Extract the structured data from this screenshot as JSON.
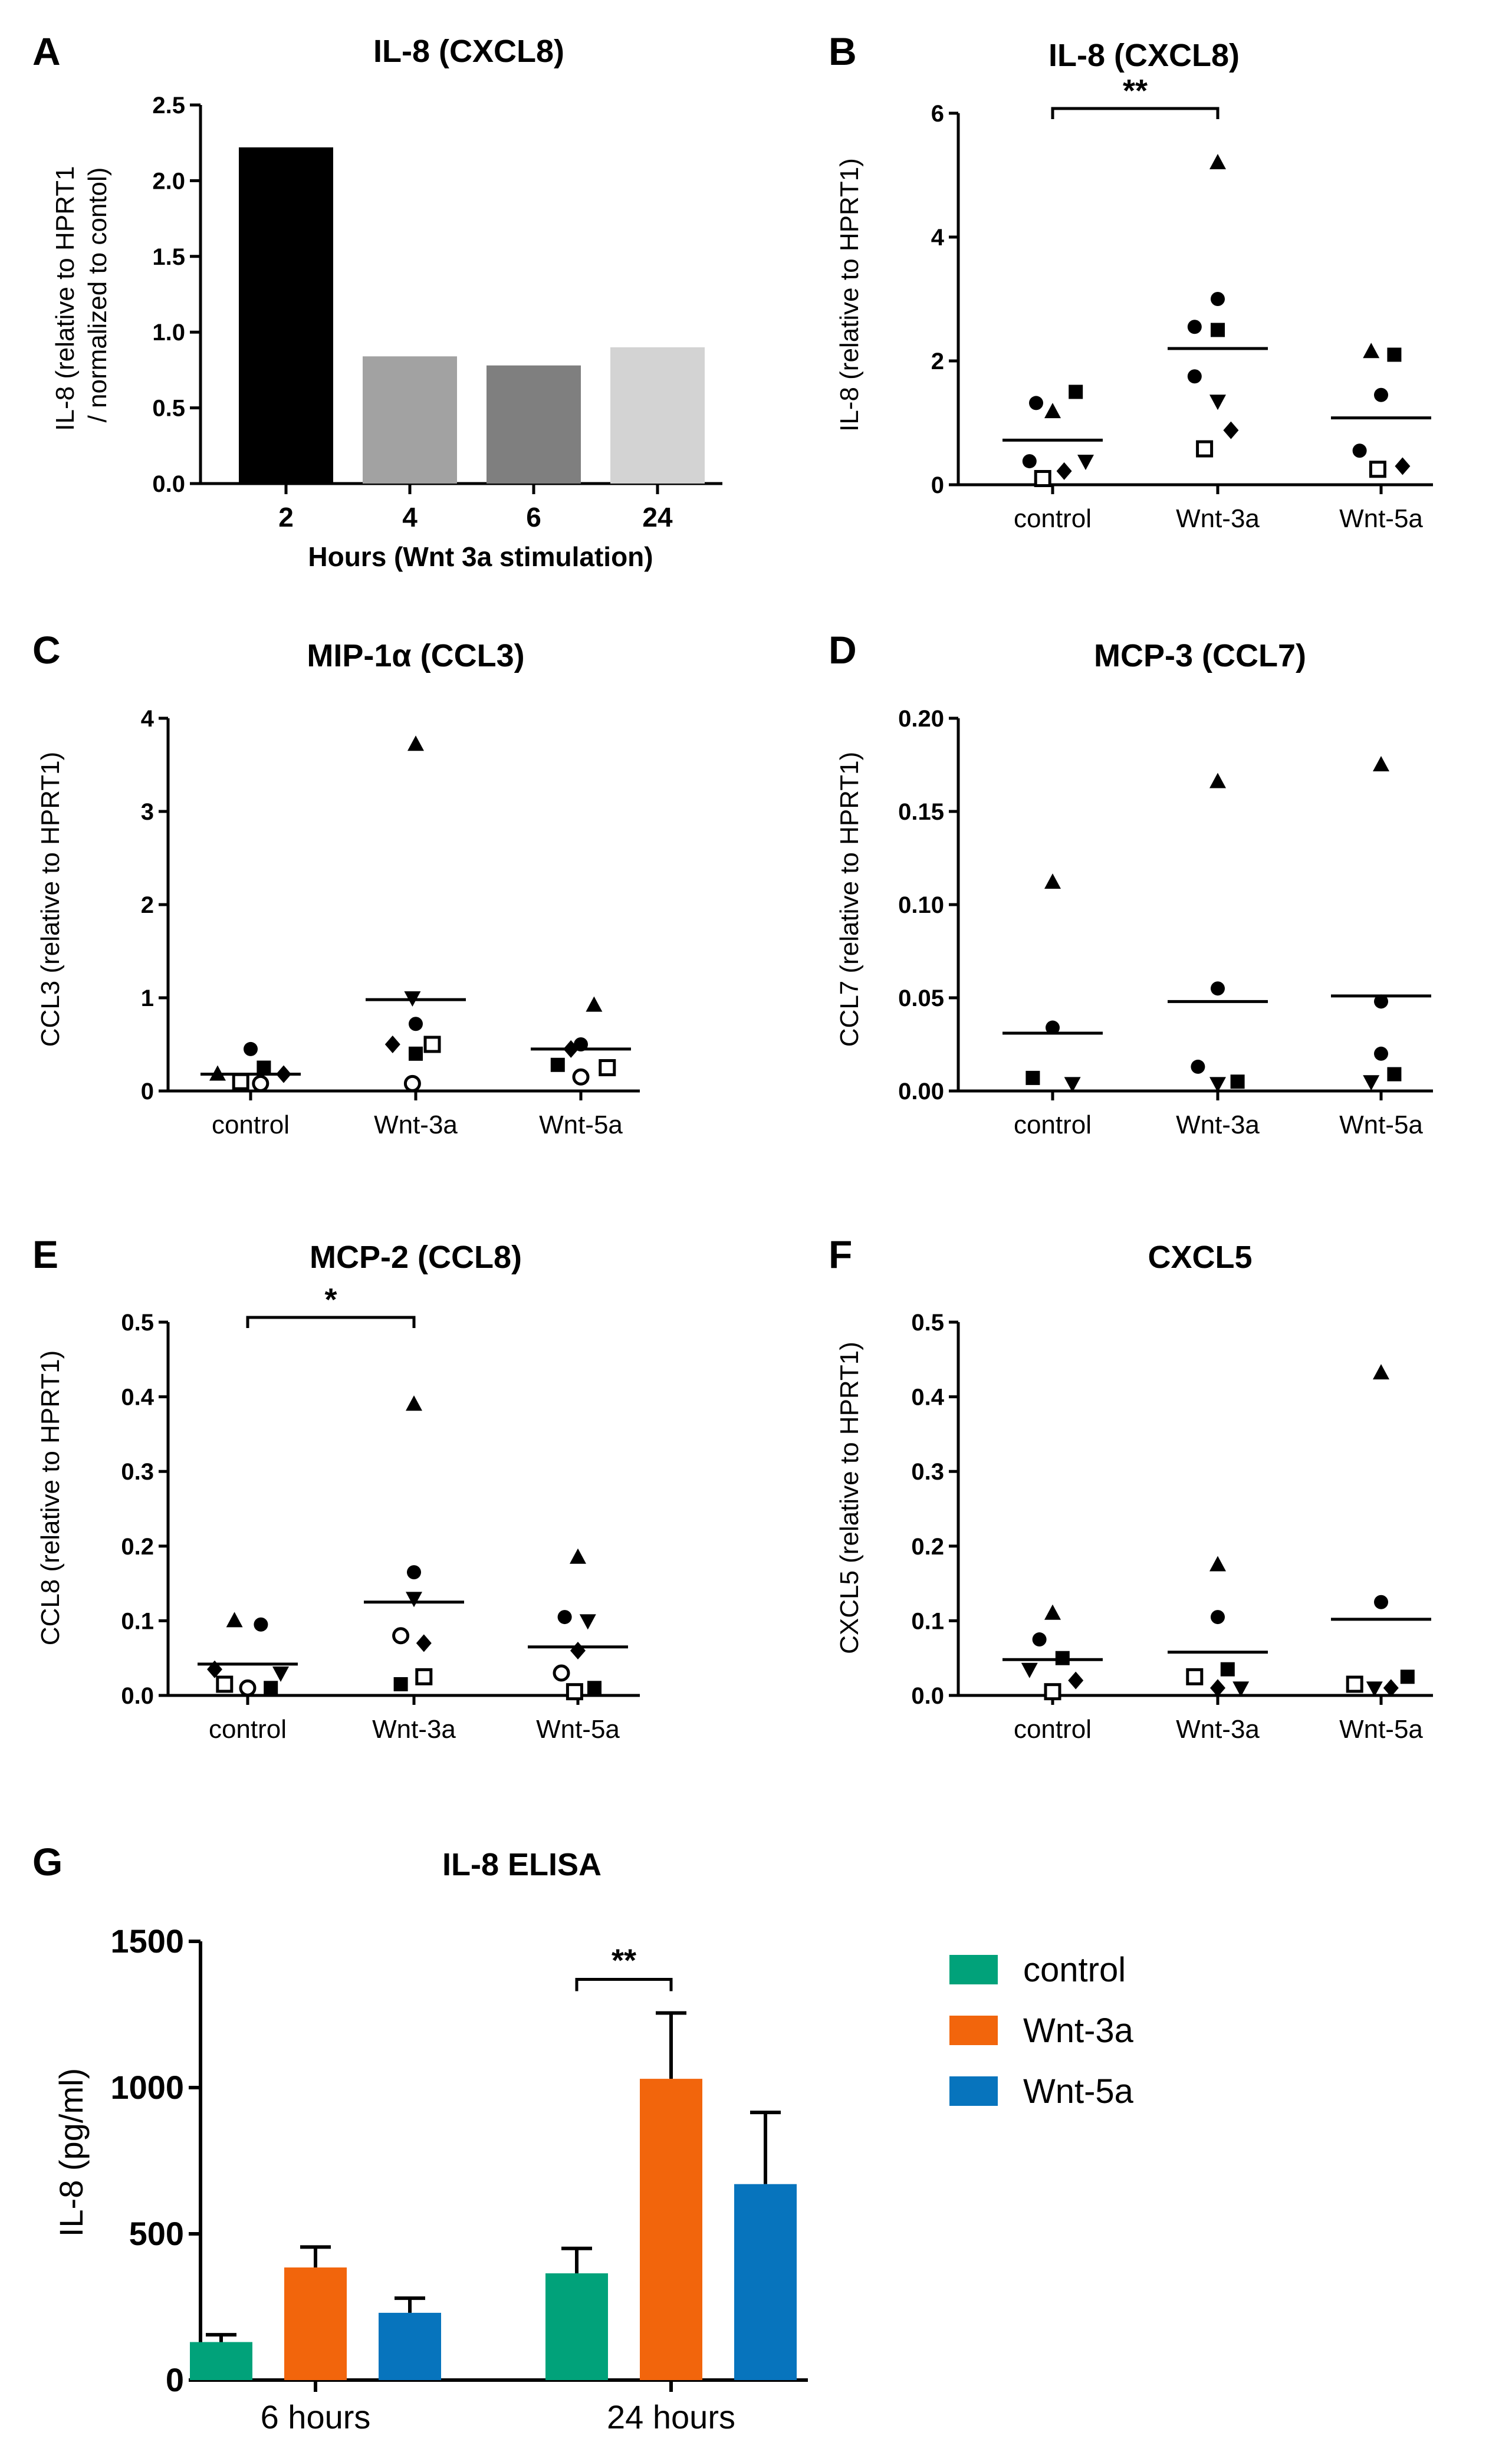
{
  "chart_data": [
    {
      "id": "A",
      "type": "bar",
      "panel_label": "A",
      "title": "IL-8 (CXCL8)",
      "ylabel": "IL-8 (relative to HPRT1\n/ normalized to contol)",
      "xlabel": "Hours (Wnt 3a stimulation)",
      "categories": [
        "2",
        "4",
        "6",
        "24"
      ],
      "values": [
        2.22,
        0.84,
        0.78,
        0.9
      ],
      "colors": [
        "#000000",
        "#a2a2a2",
        "#7f7f7f",
        "#d3d3d3"
      ],
      "ylim": [
        0,
        2.5
      ],
      "yticks": [
        "0.0",
        "0.5",
        "1.0",
        "1.5",
        "2.0",
        "2.5"
      ]
    },
    {
      "id": "B",
      "type": "scatter",
      "panel_label": "B",
      "title": "IL-8  (CXCL8)",
      "ylabel": "IL-8 (relative to HPRT1)",
      "categories": [
        "control",
        "Wnt-3a",
        "Wnt-5a"
      ],
      "ylim": [
        0,
        6
      ],
      "yticks": [
        "0",
        "2",
        "4",
        "6"
      ],
      "means": [
        0.72,
        2.2,
        1.08
      ],
      "significance": [
        {
          "from": 0,
          "to": 1,
          "label": "**",
          "y": 6.0
        }
      ],
      "points": [
        [
          {
            "s": "circle",
            "v": 1.32,
            "dx": -0.1
          },
          {
            "s": "triangle",
            "v": 1.18,
            "dx": 0.0
          },
          {
            "s": "square",
            "v": 1.5,
            "dx": 0.14
          },
          {
            "s": "circle",
            "v": 0.38,
            "dx": -0.14
          },
          {
            "s": "triangle-down",
            "v": 0.38,
            "dx": 0.2
          },
          {
            "s": "diamond",
            "v": 0.22,
            "dx": 0.07
          },
          {
            "s": "square-open",
            "v": 0.1,
            "dx": -0.06
          }
        ],
        [
          {
            "s": "triangle",
            "v": 5.2,
            "dx": 0.0
          },
          {
            "s": "circle",
            "v": 3.0,
            "dx": 0.0
          },
          {
            "s": "circle",
            "v": 2.55,
            "dx": -0.14
          },
          {
            "s": "square",
            "v": 2.5,
            "dx": 0.0
          },
          {
            "s": "circle",
            "v": 1.75,
            "dx": -0.14
          },
          {
            "s": "triangle-down",
            "v": 1.35,
            "dx": 0.0
          },
          {
            "s": "diamond",
            "v": 0.88,
            "dx": 0.08
          },
          {
            "s": "square-open",
            "v": 0.58,
            "dx": -0.08
          }
        ],
        [
          {
            "s": "triangle",
            "v": 2.15,
            "dx": -0.06
          },
          {
            "s": "square",
            "v": 2.1,
            "dx": 0.08
          },
          {
            "s": "circle",
            "v": 1.45,
            "dx": 0.0
          },
          {
            "s": "circle",
            "v": 0.55,
            "dx": -0.13
          },
          {
            "s": "diamond",
            "v": 0.3,
            "dx": 0.13
          },
          {
            "s": "square-open",
            "v": 0.25,
            "dx": -0.02
          }
        ]
      ]
    },
    {
      "id": "C",
      "type": "scatter",
      "panel_label": "C",
      "title": "MIP-1α (CCL3)",
      "ylabel": "CCL3 (relative to HPRT1)",
      "categories": [
        "control",
        "Wnt-3a",
        "Wnt-5a"
      ],
      "ylim": [
        0,
        4
      ],
      "yticks": [
        "0",
        "1",
        "2",
        "3",
        "4"
      ],
      "means": [
        0.18,
        0.98,
        0.45
      ],
      "significance": [],
      "points": [
        [
          {
            "s": "circle",
            "v": 0.45,
            "dx": 0.0
          },
          {
            "s": "triangle",
            "v": 0.18,
            "dx": -0.2
          },
          {
            "s": "square",
            "v": 0.25,
            "dx": 0.08
          },
          {
            "s": "diamond",
            "v": 0.18,
            "dx": 0.2
          },
          {
            "s": "square-open",
            "v": 0.1,
            "dx": -0.06
          },
          {
            "s": "circle-open",
            "v": 0.08,
            "dx": 0.06
          }
        ],
        [
          {
            "s": "triangle",
            "v": 3.72,
            "dx": 0.0
          },
          {
            "s": "triangle-down",
            "v": 1.0,
            "dx": -0.02
          },
          {
            "s": "circle",
            "v": 0.72,
            "dx": 0.0
          },
          {
            "s": "diamond",
            "v": 0.5,
            "dx": -0.14
          },
          {
            "s": "square",
            "v": 0.4,
            "dx": 0.0
          },
          {
            "s": "square-open",
            "v": 0.5,
            "dx": 0.1
          },
          {
            "s": "circle-open",
            "v": 0.08,
            "dx": -0.02
          }
        ],
        [
          {
            "s": "triangle",
            "v": 0.92,
            "dx": 0.08
          },
          {
            "s": "circle",
            "v": 0.5,
            "dx": 0.0
          },
          {
            "s": "square",
            "v": 0.28,
            "dx": -0.14
          },
          {
            "s": "diamond",
            "v": 0.45,
            "dx": -0.06
          },
          {
            "s": "square-open",
            "v": 0.25,
            "dx": 0.16
          },
          {
            "s": "circle-open",
            "v": 0.15,
            "dx": 0.0
          }
        ]
      ]
    },
    {
      "id": "D",
      "type": "scatter",
      "panel_label": "D",
      "title": "MCP-3 (CCL7)",
      "ylabel": "CCL7 (relative to HPRT1)",
      "categories": [
        "control",
        "Wnt-3a",
        "Wnt-5a"
      ],
      "ylim": [
        0,
        0.2
      ],
      "yticks": [
        "0.00",
        "0.05",
        "0.10",
        "0.15",
        "0.20"
      ],
      "means": [
        0.031,
        0.048,
        0.051
      ],
      "significance": [],
      "points": [
        [
          {
            "s": "triangle",
            "v": 0.112,
            "dx": 0.0
          },
          {
            "s": "circle",
            "v": 0.034,
            "dx": 0.0
          },
          {
            "s": "square",
            "v": 0.007,
            "dx": -0.12
          },
          {
            "s": "triangle-down",
            "v": 0.004,
            "dx": 0.12
          }
        ],
        [
          {
            "s": "triangle",
            "v": 0.166,
            "dx": 0.0
          },
          {
            "s": "circle",
            "v": 0.055,
            "dx": 0.0
          },
          {
            "s": "circle",
            "v": 0.013,
            "dx": -0.12
          },
          {
            "s": "triangle-down",
            "v": 0.004,
            "dx": 0.0
          },
          {
            "s": "square",
            "v": 0.005,
            "dx": 0.12
          }
        ],
        [
          {
            "s": "triangle",
            "v": 0.175,
            "dx": 0.0
          },
          {
            "s": "circle",
            "v": 0.048,
            "dx": 0.0
          },
          {
            "s": "circle",
            "v": 0.02,
            "dx": 0.0
          },
          {
            "s": "triangle-down",
            "v": 0.005,
            "dx": -0.06
          },
          {
            "s": "square",
            "v": 0.009,
            "dx": 0.08
          }
        ]
      ]
    },
    {
      "id": "E",
      "type": "scatter",
      "panel_label": "E",
      "title": "MCP-2 (CCL8)",
      "ylabel": "CCL8 (relative to HPRT1)",
      "categories": [
        "control",
        "Wnt-3a",
        "Wnt-5a"
      ],
      "ylim": [
        0,
        0.5
      ],
      "yticks": [
        "0.0",
        "0.1",
        "0.2",
        "0.3",
        "0.4",
        "0.5"
      ],
      "means": [
        0.042,
        0.125,
        0.065
      ],
      "significance": [
        {
          "from": 0,
          "to": 1,
          "label": "*",
          "y": 0.5
        }
      ],
      "points": [
        [
          {
            "s": "triangle",
            "v": 0.1,
            "dx": -0.08
          },
          {
            "s": "circle",
            "v": 0.095,
            "dx": 0.08
          },
          {
            "s": "diamond",
            "v": 0.035,
            "dx": -0.2
          },
          {
            "s": "triangle-down",
            "v": 0.03,
            "dx": 0.2
          },
          {
            "s": "square-open",
            "v": 0.015,
            "dx": -0.14
          },
          {
            "s": "circle-open",
            "v": 0.01,
            "dx": 0.0
          },
          {
            "s": "square",
            "v": 0.01,
            "dx": 0.14
          }
        ],
        [
          {
            "s": "triangle",
            "v": 0.39,
            "dx": 0.0
          },
          {
            "s": "circle",
            "v": 0.165,
            "dx": 0.0
          },
          {
            "s": "triangle-down",
            "v": 0.13,
            "dx": 0.0
          },
          {
            "s": "circle-open",
            "v": 0.08,
            "dx": -0.08
          },
          {
            "s": "diamond",
            "v": 0.07,
            "dx": 0.06
          },
          {
            "s": "square",
            "v": 0.015,
            "dx": -0.08
          },
          {
            "s": "square-open",
            "v": 0.025,
            "dx": 0.06
          }
        ],
        [
          {
            "s": "triangle",
            "v": 0.185,
            "dx": 0.0
          },
          {
            "s": "circle",
            "v": 0.105,
            "dx": -0.08
          },
          {
            "s": "triangle-down",
            "v": 0.1,
            "dx": 0.06
          },
          {
            "s": "diamond",
            "v": 0.06,
            "dx": 0.0
          },
          {
            "s": "circle-open",
            "v": 0.03,
            "dx": -0.1
          },
          {
            "s": "square",
            "v": 0.01,
            "dx": 0.1
          },
          {
            "s": "square-open",
            "v": 0.005,
            "dx": -0.02
          }
        ]
      ]
    },
    {
      "id": "F",
      "type": "scatter",
      "panel_label": "F",
      "title": "CXCL5",
      "ylabel": "CXCL5 (relative to HPRT1)",
      "categories": [
        "control",
        "Wnt-3a",
        "Wnt-5a"
      ],
      "ylim": [
        0,
        0.5
      ],
      "yticks": [
        "0.0",
        "0.1",
        "0.2",
        "0.3",
        "0.4",
        "0.5"
      ],
      "means": [
        0.048,
        0.058,
        0.102
      ],
      "significance": [],
      "points": [
        [
          {
            "s": "triangle",
            "v": 0.11,
            "dx": 0.0
          },
          {
            "s": "circle",
            "v": 0.075,
            "dx": -0.08
          },
          {
            "s": "square",
            "v": 0.05,
            "dx": 0.06
          },
          {
            "s": "triangle-down",
            "v": 0.035,
            "dx": -0.14
          },
          {
            "s": "diamond",
            "v": 0.02,
            "dx": 0.14
          },
          {
            "s": "square-open",
            "v": 0.005,
            "dx": 0.0
          }
        ],
        [
          {
            "s": "triangle",
            "v": 0.175,
            "dx": 0.0
          },
          {
            "s": "circle",
            "v": 0.105,
            "dx": 0.0
          },
          {
            "s": "square-open",
            "v": 0.025,
            "dx": -0.14
          },
          {
            "s": "square",
            "v": 0.035,
            "dx": 0.06
          },
          {
            "s": "diamond",
            "v": 0.01,
            "dx": 0.0
          },
          {
            "s": "triangle-down",
            "v": 0.01,
            "dx": 0.14
          }
        ],
        [
          {
            "s": "triangle",
            "v": 0.432,
            "dx": 0.0
          },
          {
            "s": "circle",
            "v": 0.125,
            "dx": 0.0
          },
          {
            "s": "square-open",
            "v": 0.015,
            "dx": -0.16
          },
          {
            "s": "triangle-down",
            "v": 0.01,
            "dx": -0.04
          },
          {
            "s": "diamond",
            "v": 0.01,
            "dx": 0.06
          },
          {
            "s": "square",
            "v": 0.025,
            "dx": 0.16
          }
        ]
      ]
    },
    {
      "id": "G",
      "type": "bar",
      "panel_label": "G",
      "title": "IL-8 ELISA",
      "ylabel": "IL-8 (pg/ml)",
      "categories": [
        "6 hours",
        "24 hours"
      ],
      "ylim": [
        0,
        1500
      ],
      "yticks": [
        "0",
        "500",
        "1000",
        "1500"
      ],
      "series": [
        {
          "name": "control",
          "color": "#01a27a",
          "values": [
            130,
            365
          ],
          "errors": [
            25,
            85
          ]
        },
        {
          "name": "Wnt-3a",
          "color": "#f2650c",
          "values": [
            385,
            1030
          ],
          "errors": [
            70,
            225
          ]
        },
        {
          "name": "Wnt-5a",
          "color": "#0774bd",
          "values": [
            230,
            670
          ],
          "errors": [
            50,
            245
          ]
        }
      ],
      "significance": [
        {
          "category": 1,
          "from": 0,
          "to": 1,
          "label": "**",
          "y": 1370
        }
      ]
    }
  ]
}
